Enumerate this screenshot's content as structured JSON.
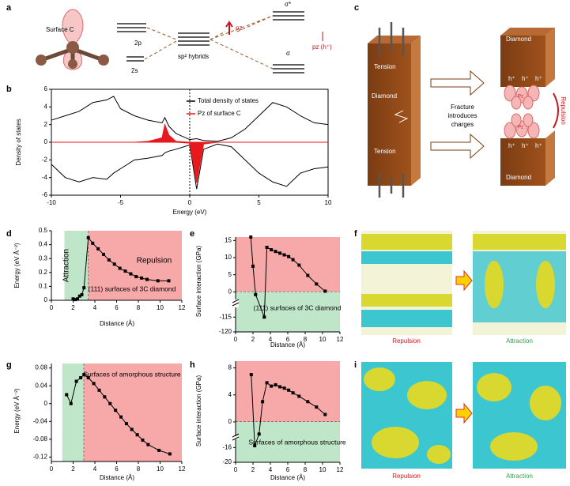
{
  "figure": {
    "a": {
      "label": "a",
      "surface": "Surface C",
      "level_2p": "2p",
      "level_2s": "2s",
      "hybrids": "sp² hybrids",
      "pz": "pz",
      "sigma_star": "σ*",
      "sigma": "σ",
      "pz_hole": "pz (h⁺)"
    },
    "c": {
      "label": "c",
      "diamond_top": "Diamond",
      "tension_top": "Tension",
      "diamond_mid": "Diamond",
      "tension_bottom": "Tension",
      "fracture": "Fracture",
      "introduces": "introduces",
      "charges": "charges",
      "diamond_right_top": "Diamond",
      "diamond_right_bottom": "Diamond",
      "repulsion": "Repulsion",
      "hole": "h⁺",
      "pz": "Pz"
    },
    "f": {
      "label": "f",
      "left": "Repulsion",
      "right": "Attraction"
    },
    "i": {
      "label": "i",
      "left": "Repulsion",
      "right": "Attraction"
    }
  },
  "chart_data": [
    {
      "type": "line",
      "label": "b",
      "xlabel": "Energy (eV)",
      "ylabel": "Density of states",
      "x": [
        -10,
        -9,
        -8,
        -7,
        -6,
        -5.5,
        -5,
        -4,
        -3,
        -2,
        -1.8,
        -1.5,
        -1,
        0,
        0.5,
        1,
        2,
        3,
        4,
        5,
        6,
        7,
        8,
        9,
        10
      ],
      "series": [
        {
          "name": "Total density of states",
          "color": "#000000",
          "values": [
            2.5,
            3,
            3.5,
            4.5,
            4.8,
            5.2,
            3.8,
            3,
            2.5,
            2.2,
            2.8,
            1.8,
            1,
            0.3,
            0.4,
            0.2,
            0.1,
            0.5,
            1.5,
            3,
            4.5,
            4,
            3,
            2.2,
            2
          ],
          "values_down": [
            -2.5,
            -4,
            -4.5,
            -4,
            -4.2,
            -3.5,
            -3,
            -2,
            -1.8,
            -1.5,
            -1.2,
            -1,
            -0.8,
            -0.3,
            -5.3,
            -0.8,
            -0.2,
            -0.5,
            -2,
            -3.5,
            -4.5,
            -5,
            -3.5,
            -3,
            -2.8
          ]
        },
        {
          "name": "Pz of surface C",
          "color": "#e8191c",
          "fill": true,
          "values": [
            0,
            0,
            0,
            0,
            0,
            0,
            0,
            0,
            0.1,
            0.5,
            2,
            0.8,
            0.1,
            0,
            0,
            0,
            0,
            0,
            0,
            0,
            0,
            0,
            0,
            0,
            0
          ],
          "values_down": [
            0,
            0,
            0,
            0,
            0,
            0,
            0,
            0,
            0,
            0,
            0,
            0,
            0,
            -0.1,
            -4.6,
            -0.2,
            0,
            0,
            0,
            0,
            0,
            0,
            0,
            0,
            0
          ]
        }
      ],
      "xlim": [
        -10,
        10
      ],
      "ylim": [
        -6,
        6
      ],
      "xticks": [
        -10,
        -5,
        0,
        5,
        10
      ],
      "yticks": [
        -6,
        -4,
        -2,
        0,
        2,
        4,
        6
      ],
      "frame": true,
      "legend": "upper right"
    },
    {
      "type": "line",
      "label": "d",
      "xlabel": "Distance (Å)",
      "ylabel": "Energy (eV Å⁻²)",
      "color": "#000000",
      "x": [
        2.0,
        2.2,
        2.4,
        2.6,
        2.8,
        3.0,
        3.4,
        3.8,
        4.3,
        4.8,
        5.3,
        5.8,
        6.3,
        6.8,
        7.3,
        7.8,
        8.3,
        8.8,
        9.8,
        10.8
      ],
      "values": [
        0.01,
        0.005,
        0.01,
        0.03,
        0.04,
        0.09,
        0.45,
        0.41,
        0.37,
        0.33,
        0.29,
        0.26,
        0.23,
        0.21,
        0.19,
        0.17,
        0.16,
        0.15,
        0.14,
        0.14
      ],
      "xlim": [
        0,
        12
      ],
      "ylim": [
        0,
        0.5
      ],
      "xticks": [
        0,
        2,
        4,
        6,
        8,
        10,
        12
      ],
      "yticks": [
        0,
        0.1,
        0.2,
        0.3,
        0.4,
        0.5
      ],
      "xregions": [
        {
          "label": "Attraction",
          "from": 1.2,
          "to": 3.4,
          "color": "#bfe6c9"
        },
        {
          "label": "Repulsion",
          "from": 3.4,
          "to": 12,
          "color": "#f7a8a8"
        }
      ],
      "annotation": "(111) surfaces of 3C diamond"
    },
    {
      "type": "line",
      "label": "e",
      "xlabel": "Distance (Å)",
      "ylabel": "Surface interaction (GPa)",
      "color": "#000000",
      "x": [
        1.75,
        2.0,
        2.3,
        3.3,
        3.6,
        4.1,
        4.6,
        5.1,
        5.6,
        6.1,
        6.6,
        7.3,
        8.3,
        9.3,
        10.3
      ],
      "values": [
        16,
        7.5,
        -0.8,
        -115,
        13,
        12.3,
        11.8,
        11.3,
        10.8,
        10.3,
        9.4,
        7.8,
        4.8,
        2.3,
        0.2
      ],
      "xlim": [
        0,
        12
      ],
      "ylim": [
        -120,
        16
      ],
      "ybreak": [
        -112,
        -2
      ],
      "xticks": [
        0,
        2,
        4,
        6,
        8,
        10,
        12
      ],
      "yticks": [
        -120,
        -115,
        0,
        5,
        10,
        15
      ],
      "yregions": [
        {
          "from": 0,
          "to": 16,
          "color": "#f7a8a8"
        },
        {
          "from": -120,
          "to": 0,
          "color": "#bfe6c9"
        }
      ],
      "annotation": "(111) surfaces of 3C diamond"
    },
    {
      "type": "line",
      "label": "g",
      "xlabel": "Distance (Å)",
      "ylabel": "Energy (eV Å⁻²)",
      "color": "#000000",
      "x": [
        1.4,
        1.8,
        2.3,
        2.7,
        3.0,
        3.4,
        3.9,
        4.4,
        4.9,
        5.4,
        5.9,
        6.4,
        6.9,
        7.4,
        7.9,
        8.4,
        8.9,
        9.9,
        10.9
      ],
      "values": [
        0.02,
        0,
        0.05,
        0.058,
        0.065,
        0.058,
        0.045,
        0.03,
        0.015,
        0,
        -0.015,
        -0.03,
        -0.045,
        -0.058,
        -0.07,
        -0.082,
        -0.092,
        -0.105,
        -0.113
      ],
      "xlim": [
        0,
        12
      ],
      "ylim": [
        -0.13,
        0.09
      ],
      "xticks": [
        0,
        2,
        4,
        6,
        8,
        10,
        12
      ],
      "yticks": [
        -0.12,
        -0.08,
        -0.04,
        0,
        0.04,
        0.08
      ],
      "xregions": [
        {
          "from": 1.0,
          "to": 3.0,
          "color": "#bfe6c9"
        },
        {
          "from": 3.0,
          "to": 12,
          "color": "#f7a8a8"
        }
      ],
      "annotation": "Surfaces of amorphous structure"
    },
    {
      "type": "line",
      "label": "h",
      "xlabel": "Distance (Å)",
      "ylabel": "Surface interaction (GPa)",
      "color": "#000000",
      "x": [
        1.8,
        2.2,
        2.7,
        3.1,
        3.6,
        4.1,
        4.6,
        5.1,
        5.6,
        6.1,
        6.6,
        7.3,
        8.3,
        9.3,
        10.3
      ],
      "values": [
        7,
        -15.5,
        -1.8,
        3,
        5.8,
        5.3,
        5.5,
        5.2,
        5,
        4.7,
        4.3,
        3.8,
        3,
        2.2,
        1.1
      ],
      "xlim": [
        0,
        12
      ],
      "ylim": [
        -20,
        9
      ],
      "ybreak": [
        -14,
        -2
      ],
      "xticks": [
        0,
        2,
        4,
        6,
        8,
        10,
        12
      ],
      "yticks": [
        -20,
        -16,
        0,
        4,
        8
      ],
      "yregions": [
        {
          "from": 0,
          "to": 9,
          "color": "#f7a8a8"
        },
        {
          "from": -20,
          "to": 0,
          "color": "#bfe6c9"
        }
      ],
      "annotation": "Surfaces of amorphous structure"
    }
  ]
}
